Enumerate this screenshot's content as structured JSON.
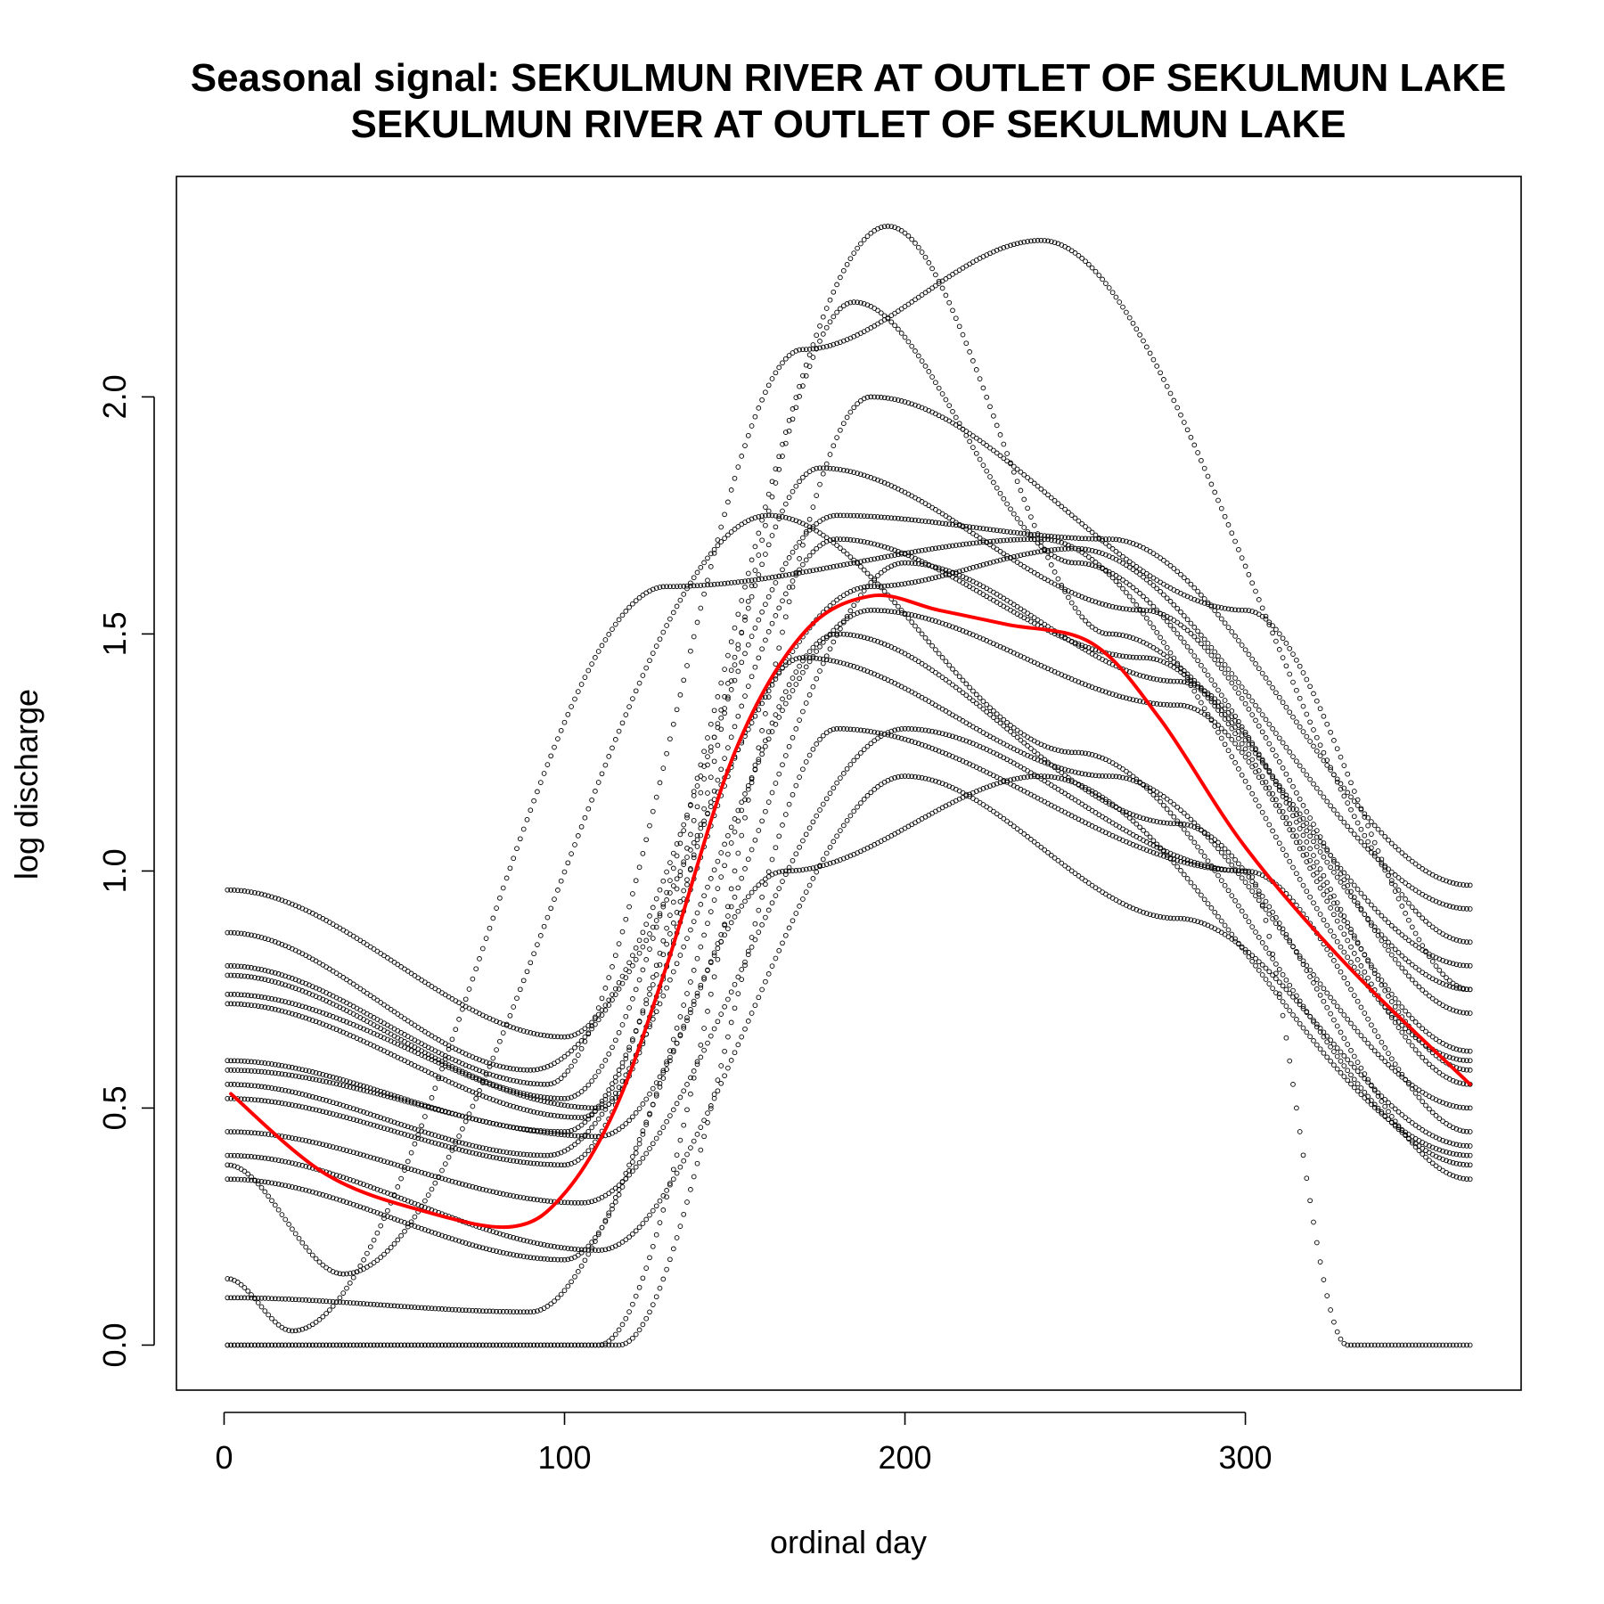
{
  "chart_data": {
    "type": "scatter",
    "title_line1": "Seasonal signal: SEKULMUN RIVER AT OUTLET OF SEKULMUN LAKE",
    "title_line2": "SEKULMUN RIVER AT OUTLET OF SEKULMUN LAKE",
    "xlabel": "ordinal day",
    "ylabel": "log discharge",
    "xlim": [
      -14,
      381
    ],
    "ylim": [
      -0.095,
      2.465
    ],
    "x_ticks": [
      0,
      100,
      200,
      300
    ],
    "x_tick_labels": [
      "0",
      "100",
      "200",
      "300"
    ],
    "y_ticks": [
      0.0,
      0.5,
      1.0,
      1.5,
      2.0
    ],
    "y_tick_labels": [
      "0.0",
      "0.5",
      "1.0",
      "1.5",
      "2.0"
    ],
    "grid": false,
    "legend": "none",
    "colors": {
      "points": "#000000",
      "smooth": "#ff0000"
    },
    "series": [
      {
        "style": "points",
        "x": [
          1,
          100,
          180,
          260,
          366
        ],
        "y": [
          0.96,
          0.65,
          1.75,
          1.7,
          0.97
        ]
      },
      {
        "style": "points",
        "x": [
          1,
          90,
          190,
          250,
          366
        ],
        "y": [
          0.87,
          0.58,
          1.6,
          1.68,
          0.92
        ]
      },
      {
        "style": "points",
        "x": [
          1,
          95,
          170,
          240,
          366
        ],
        "y": [
          0.8,
          0.55,
          2.1,
          2.33,
          0.85
        ]
      },
      {
        "style": "points",
        "x": [
          1,
          100,
          195,
          260,
          366
        ],
        "y": [
          0.78,
          0.52,
          2.36,
          1.5,
          0.8
        ]
      },
      {
        "style": "points",
        "x": [
          1,
          110,
          185,
          250,
          366
        ],
        "y": [
          0.74,
          0.5,
          2.2,
          1.65,
          0.75
        ]
      },
      {
        "style": "points",
        "x": [
          1,
          105,
          175,
          270,
          366
        ],
        "y": [
          0.72,
          0.48,
          1.85,
          1.55,
          0.7
        ]
      },
      {
        "style": "points",
        "x": [
          1,
          100,
          180,
          270,
          366
        ],
        "y": [
          0.6,
          0.45,
          1.7,
          1.45,
          0.62
        ]
      },
      {
        "style": "points",
        "x": [
          1,
          110,
          200,
          280,
          366
        ],
        "y": [
          0.58,
          0.44,
          1.65,
          1.4,
          0.58
        ]
      },
      {
        "style": "points",
        "x": [
          1,
          95,
          190,
          280,
          366
        ],
        "y": [
          0.55,
          0.4,
          1.55,
          1.35,
          0.55
        ]
      },
      {
        "style": "points",
        "x": [
          1,
          100,
          170,
          260,
          366
        ],
        "y": [
          0.52,
          0.38,
          1.45,
          1.2,
          0.5
        ]
      },
      {
        "style": "points",
        "x": [
          1,
          105,
          200,
          300,
          366
        ],
        "y": [
          0.45,
          0.3,
          1.3,
          1.0,
          0.45
        ]
      },
      {
        "style": "points",
        "x": [
          1,
          110,
          200,
          280,
          366
        ],
        "y": [
          0.4,
          0.2,
          1.2,
          0.9,
          0.42
        ]
      },
      {
        "style": "points",
        "x": [
          1,
          35,
          160,
          250,
          366
        ],
        "y": [
          0.38,
          0.15,
          1.75,
          1.25,
          0.38
        ]
      },
      {
        "style": "points",
        "x": [
          1,
          100,
          180,
          280,
          366
        ],
        "y": [
          0.35,
          0.18,
          1.5,
          1.1,
          0.35
        ]
      },
      {
        "style": "points",
        "x": [
          1,
          20,
          130,
          240,
          366
        ],
        "y": [
          0.14,
          0.03,
          1.6,
          1.7,
          0.6
        ]
      },
      {
        "style": "points",
        "x": [
          1,
          90,
          165,
          240,
          366
        ],
        "y": [
          0.1,
          0.07,
          1.0,
          1.2,
          0.4
        ]
      },
      {
        "style": "points",
        "x": [
          1,
          110,
          190,
          300,
          366
        ],
        "y": [
          0.0,
          0.0,
          2.0,
          1.55,
          0.75
        ]
      },
      {
        "style": "points",
        "x": [
          1,
          116,
          180,
          300,
          330,
          366
        ],
        "y": [
          0.0,
          0.0,
          1.3,
          1.0,
          0.0,
          0.0
        ]
      }
    ],
    "smooth": {
      "x": [
        2,
        30,
        60,
        85,
        100,
        115,
        130,
        150,
        170,
        190,
        210,
        230,
        255,
        275,
        300,
        330,
        366
      ],
      "y": [
        0.53,
        0.36,
        0.28,
        0.25,
        0.32,
        0.5,
        0.8,
        1.25,
        1.5,
        1.58,
        1.55,
        1.52,
        1.48,
        1.32,
        1.05,
        0.8,
        0.55
      ]
    }
  }
}
